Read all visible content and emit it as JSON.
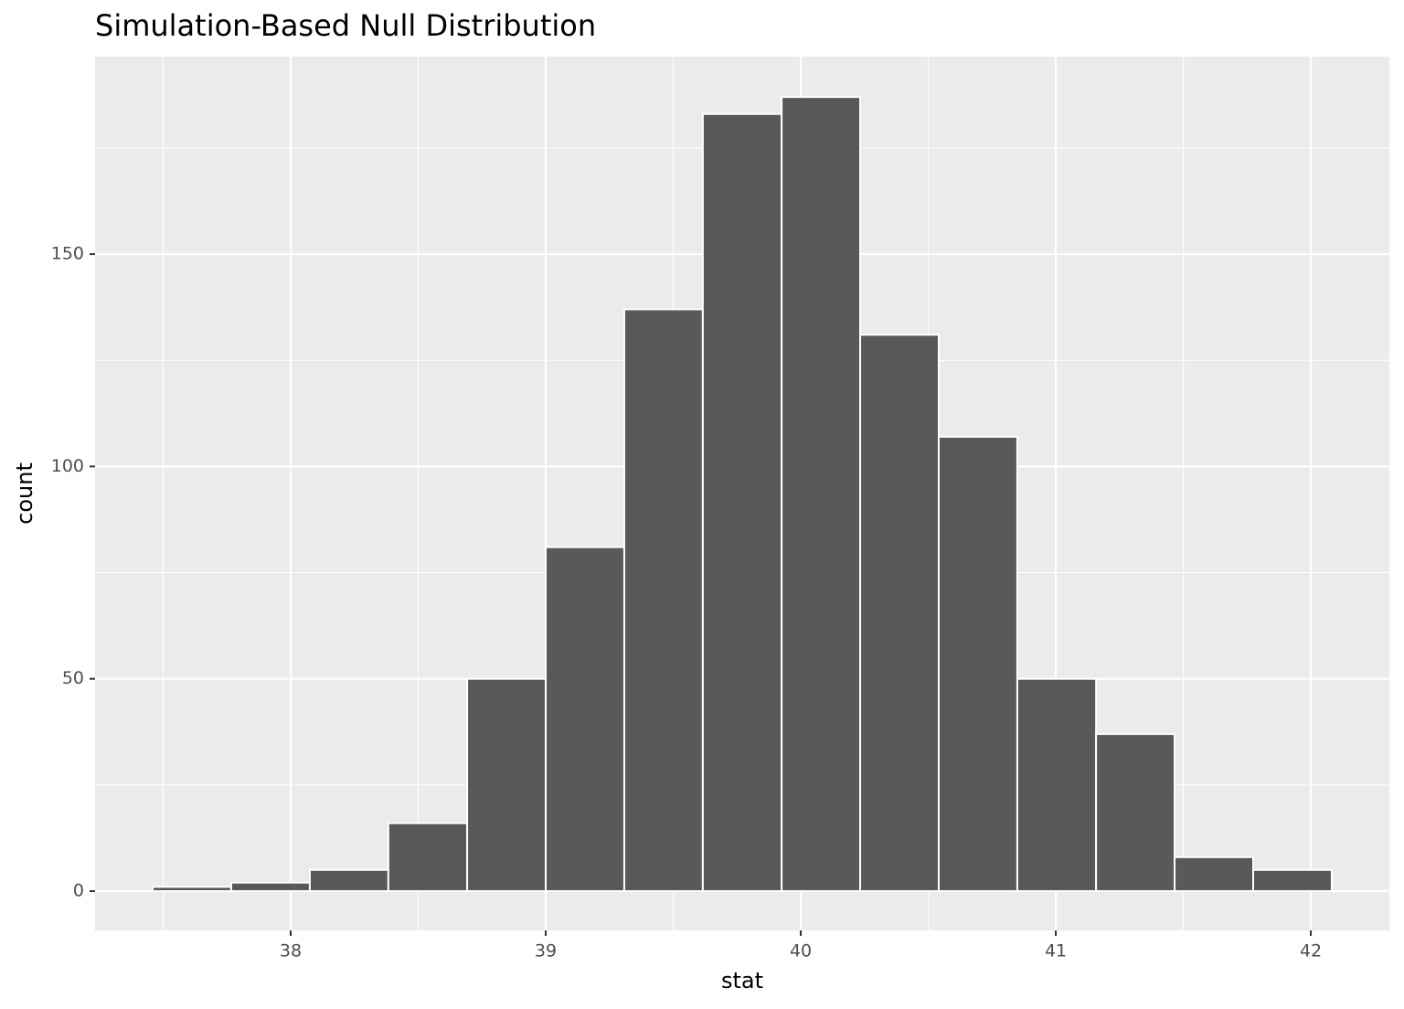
{
  "chart_data": {
    "type": "histogram",
    "title": "Simulation-Based Null Distribution",
    "x_label": "stat",
    "y_label": "count",
    "bins": [
      37.459,
      37.767,
      38.075,
      38.383,
      38.692,
      39.0,
      39.308,
      39.616,
      39.925,
      40.233,
      40.541,
      40.849,
      41.158,
      41.466,
      41.774,
      42.082
    ],
    "counts": [
      1,
      2,
      5,
      16,
      50,
      81,
      137,
      183,
      187,
      131,
      107,
      50,
      37,
      8,
      5
    ],
    "color": "#595959",
    "xlim": [
      37.233,
      42.308
    ],
    "ylim": [
      -9.25,
      196.5
    ],
    "xticks": [
      38,
      39,
      40,
      41,
      42
    ],
    "yticks": [
      0,
      50,
      100,
      150
    ],
    "minor_xticks": [
      37.5,
      38.5,
      39.5,
      40.5,
      41.5
    ],
    "minor_yticks": [
      25,
      75,
      125,
      175
    ],
    "grid": true
  }
}
